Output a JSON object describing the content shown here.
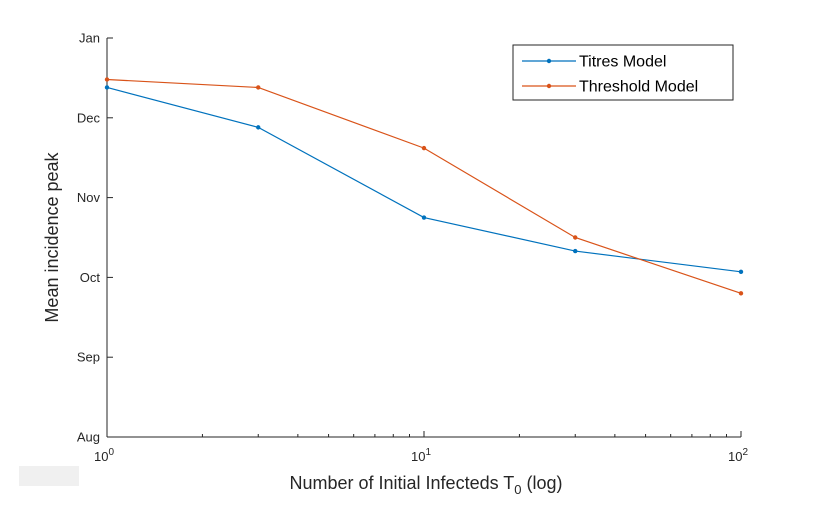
{
  "chart_data": {
    "type": "line",
    "title": "",
    "xlabel": "Number of Initial Infecteds T",
    "xlabel_subscript": "0",
    "xlabel_suffix": " (log)",
    "ylabel": "Mean incidence peak",
    "xscale": "log",
    "xlim": [
      1,
      100
    ],
    "x_ticks": [
      {
        "value": 1,
        "base": "10",
        "exp": "0"
      },
      {
        "value": 10,
        "base": "10",
        "exp": "1"
      },
      {
        "value": 100,
        "base": "10",
        "exp": "2"
      }
    ],
    "ylim": [
      0,
      5
    ],
    "y_ticks": [
      {
        "value": 0,
        "label": "Aug"
      },
      {
        "value": 1,
        "label": "Sep"
      },
      {
        "value": 2,
        "label": "Oct"
      },
      {
        "value": 3,
        "label": "Nov"
      },
      {
        "value": 4,
        "label": "Dec"
      },
      {
        "value": 5,
        "label": "Jan"
      }
    ],
    "grid": false,
    "legend_position": "top-right",
    "x": [
      1,
      3,
      10,
      30,
      100
    ],
    "series": [
      {
        "name": "Titres Model",
        "color": "#0072BD",
        "values": [
          4.38,
          3.88,
          2.75,
          2.33,
          2.07
        ]
      },
      {
        "name": "Threshold Model",
        "color": "#D95319",
        "values": [
          4.48,
          4.38,
          3.62,
          2.5,
          1.8
        ]
      }
    ]
  }
}
